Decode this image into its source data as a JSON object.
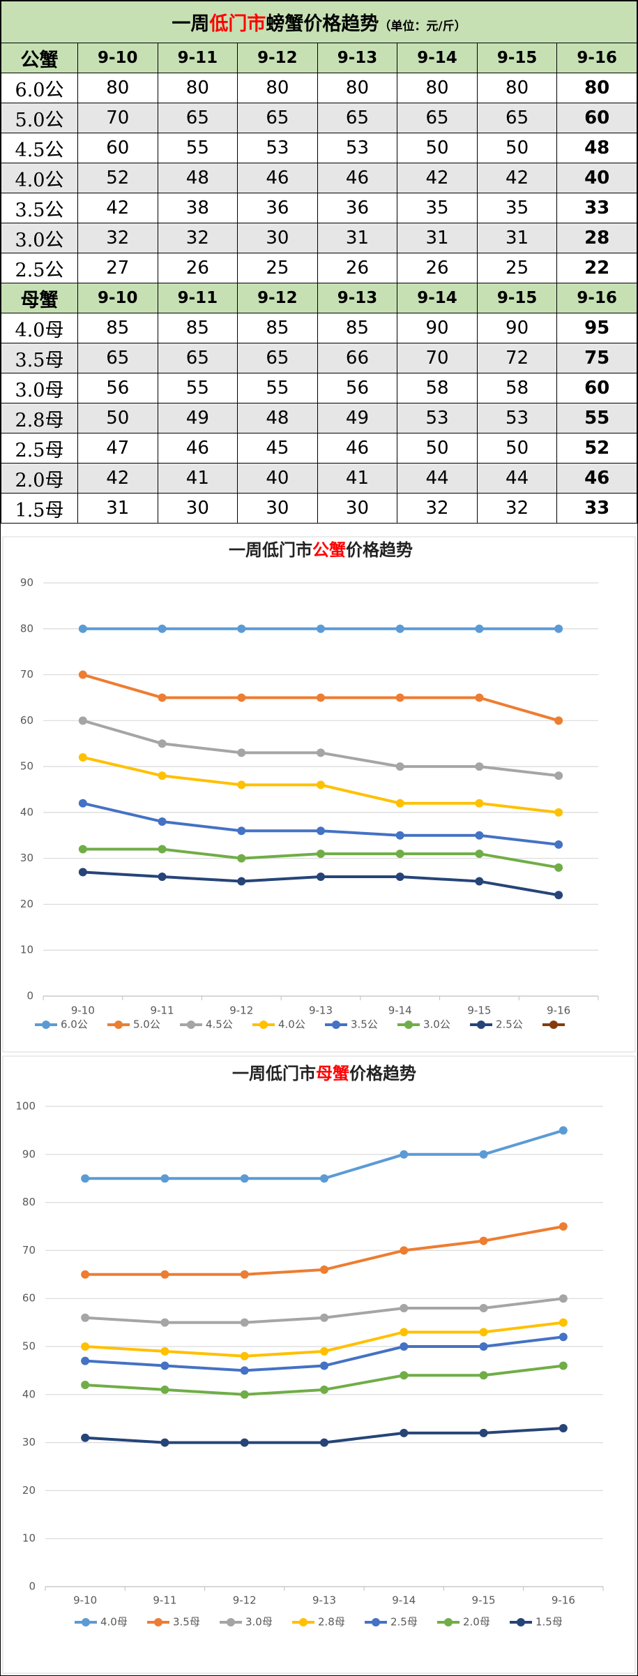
{
  "table": {
    "title": [
      "一周",
      "低门市",
      "螃蟹价格趋势",
      "（单位：元/斤）"
    ],
    "male_header": [
      "公蟹",
      "9-10",
      "9-11",
      "9-12",
      "9-13",
      "9-14",
      "9-15",
      "9-16"
    ],
    "male_rows": [
      [
        "6.0公",
        "80",
        "80",
        "80",
        "80",
        "80",
        "80",
        "80"
      ],
      [
        "5.0公",
        "70",
        "65",
        "65",
        "65",
        "65",
        "65",
        "60"
      ],
      [
        "4.5公",
        "60",
        "55",
        "53",
        "53",
        "50",
        "50",
        "48"
      ],
      [
        "4.0公",
        "52",
        "48",
        "46",
        "46",
        "42",
        "42",
        "40"
      ],
      [
        "3.5公",
        "42",
        "38",
        "36",
        "36",
        "35",
        "35",
        "33"
      ],
      [
        "3.0公",
        "32",
        "32",
        "30",
        "31",
        "31",
        "31",
        "28"
      ],
      [
        "2.5公",
        "27",
        "26",
        "25",
        "26",
        "26",
        "25",
        "22"
      ]
    ],
    "female_header": [
      "母蟹",
      "9-10",
      "9-11",
      "9-12",
      "9-13",
      "9-14",
      "9-15",
      "9-16"
    ],
    "female_rows": [
      [
        "4.0母",
        "85",
        "85",
        "85",
        "85",
        "90",
        "90",
        "95"
      ],
      [
        "3.5母",
        "65",
        "65",
        "65",
        "66",
        "70",
        "72",
        "75"
      ],
      [
        "3.0母",
        "56",
        "55",
        "55",
        "56",
        "58",
        "58",
        "60"
      ],
      [
        "2.8母",
        "50",
        "49",
        "48",
        "49",
        "53",
        "53",
        "55"
      ],
      [
        "2.5母",
        "47",
        "46",
        "45",
        "46",
        "50",
        "50",
        "52"
      ],
      [
        "2.0母",
        "42",
        "41",
        "40",
        "41",
        "44",
        "44",
        "46"
      ],
      [
        "1.5母",
        "31",
        "30",
        "30",
        "30",
        "32",
        "32",
        "33"
      ]
    ]
  },
  "chart_data": [
    {
      "type": "line",
      "title": [
        "一周低门市",
        "公蟹",
        "价格趋势"
      ],
      "categories": [
        "9-10",
        "9-11",
        "9-12",
        "9-13",
        "9-14",
        "9-15",
        "9-16"
      ],
      "ylim": [
        0,
        90
      ],
      "yticks": [
        0,
        10,
        20,
        30,
        40,
        50,
        60,
        70,
        80,
        90
      ],
      "grid": true,
      "legend": "bottom",
      "series": [
        {
          "name": "6.0公",
          "color": "#5b9bd5",
          "values": [
            80,
            80,
            80,
            80,
            80,
            80,
            80
          ]
        },
        {
          "name": "5.0公",
          "color": "#ed7d31",
          "values": [
            70,
            65,
            65,
            65,
            65,
            65,
            60
          ]
        },
        {
          "name": "4.5公",
          "color": "#a5a5a5",
          "values": [
            60,
            55,
            53,
            53,
            50,
            50,
            48
          ]
        },
        {
          "name": "4.0公",
          "color": "#ffc000",
          "values": [
            52,
            48,
            46,
            46,
            42,
            42,
            40
          ]
        },
        {
          "name": "3.5公",
          "color": "#4472c4",
          "values": [
            42,
            38,
            36,
            36,
            35,
            35,
            33
          ]
        },
        {
          "name": "3.0公",
          "color": "#70ad47",
          "values": [
            32,
            32,
            30,
            31,
            31,
            31,
            28
          ]
        },
        {
          "name": "2.5公",
          "color": "#264478",
          "values": [
            27,
            26,
            25,
            26,
            26,
            25,
            22
          ]
        }
      ]
    },
    {
      "type": "line",
      "title": [
        "一周低门市",
        "母蟹",
        "价格趋势"
      ],
      "categories": [
        "9-10",
        "9-11",
        "9-12",
        "9-13",
        "9-14",
        "9-15",
        "9-16"
      ],
      "ylim": [
        0,
        100
      ],
      "yticks": [
        0,
        10,
        20,
        30,
        40,
        50,
        60,
        70,
        80,
        90,
        100
      ],
      "grid": true,
      "legend": "bottom",
      "series": [
        {
          "name": "4.0母",
          "color": "#5b9bd5",
          "values": [
            85,
            85,
            85,
            85,
            90,
            90,
            95
          ]
        },
        {
          "name": "3.5母",
          "color": "#ed7d31",
          "values": [
            65,
            65,
            65,
            66,
            70,
            72,
            75
          ]
        },
        {
          "name": "3.0母",
          "color": "#a5a5a5",
          "values": [
            56,
            55,
            55,
            56,
            58,
            58,
            60
          ]
        },
        {
          "name": "2.8母",
          "color": "#ffc000",
          "values": [
            50,
            49,
            48,
            49,
            53,
            53,
            55
          ]
        },
        {
          "name": "2.5母",
          "color": "#4472c4",
          "values": [
            47,
            46,
            45,
            46,
            50,
            50,
            52
          ]
        },
        {
          "name": "2.0母",
          "color": "#70ad47",
          "values": [
            42,
            41,
            40,
            41,
            44,
            44,
            46
          ]
        },
        {
          "name": "1.5母",
          "color": "#264478",
          "values": [
            31,
            30,
            30,
            30,
            32,
            32,
            33
          ]
        }
      ]
    }
  ]
}
